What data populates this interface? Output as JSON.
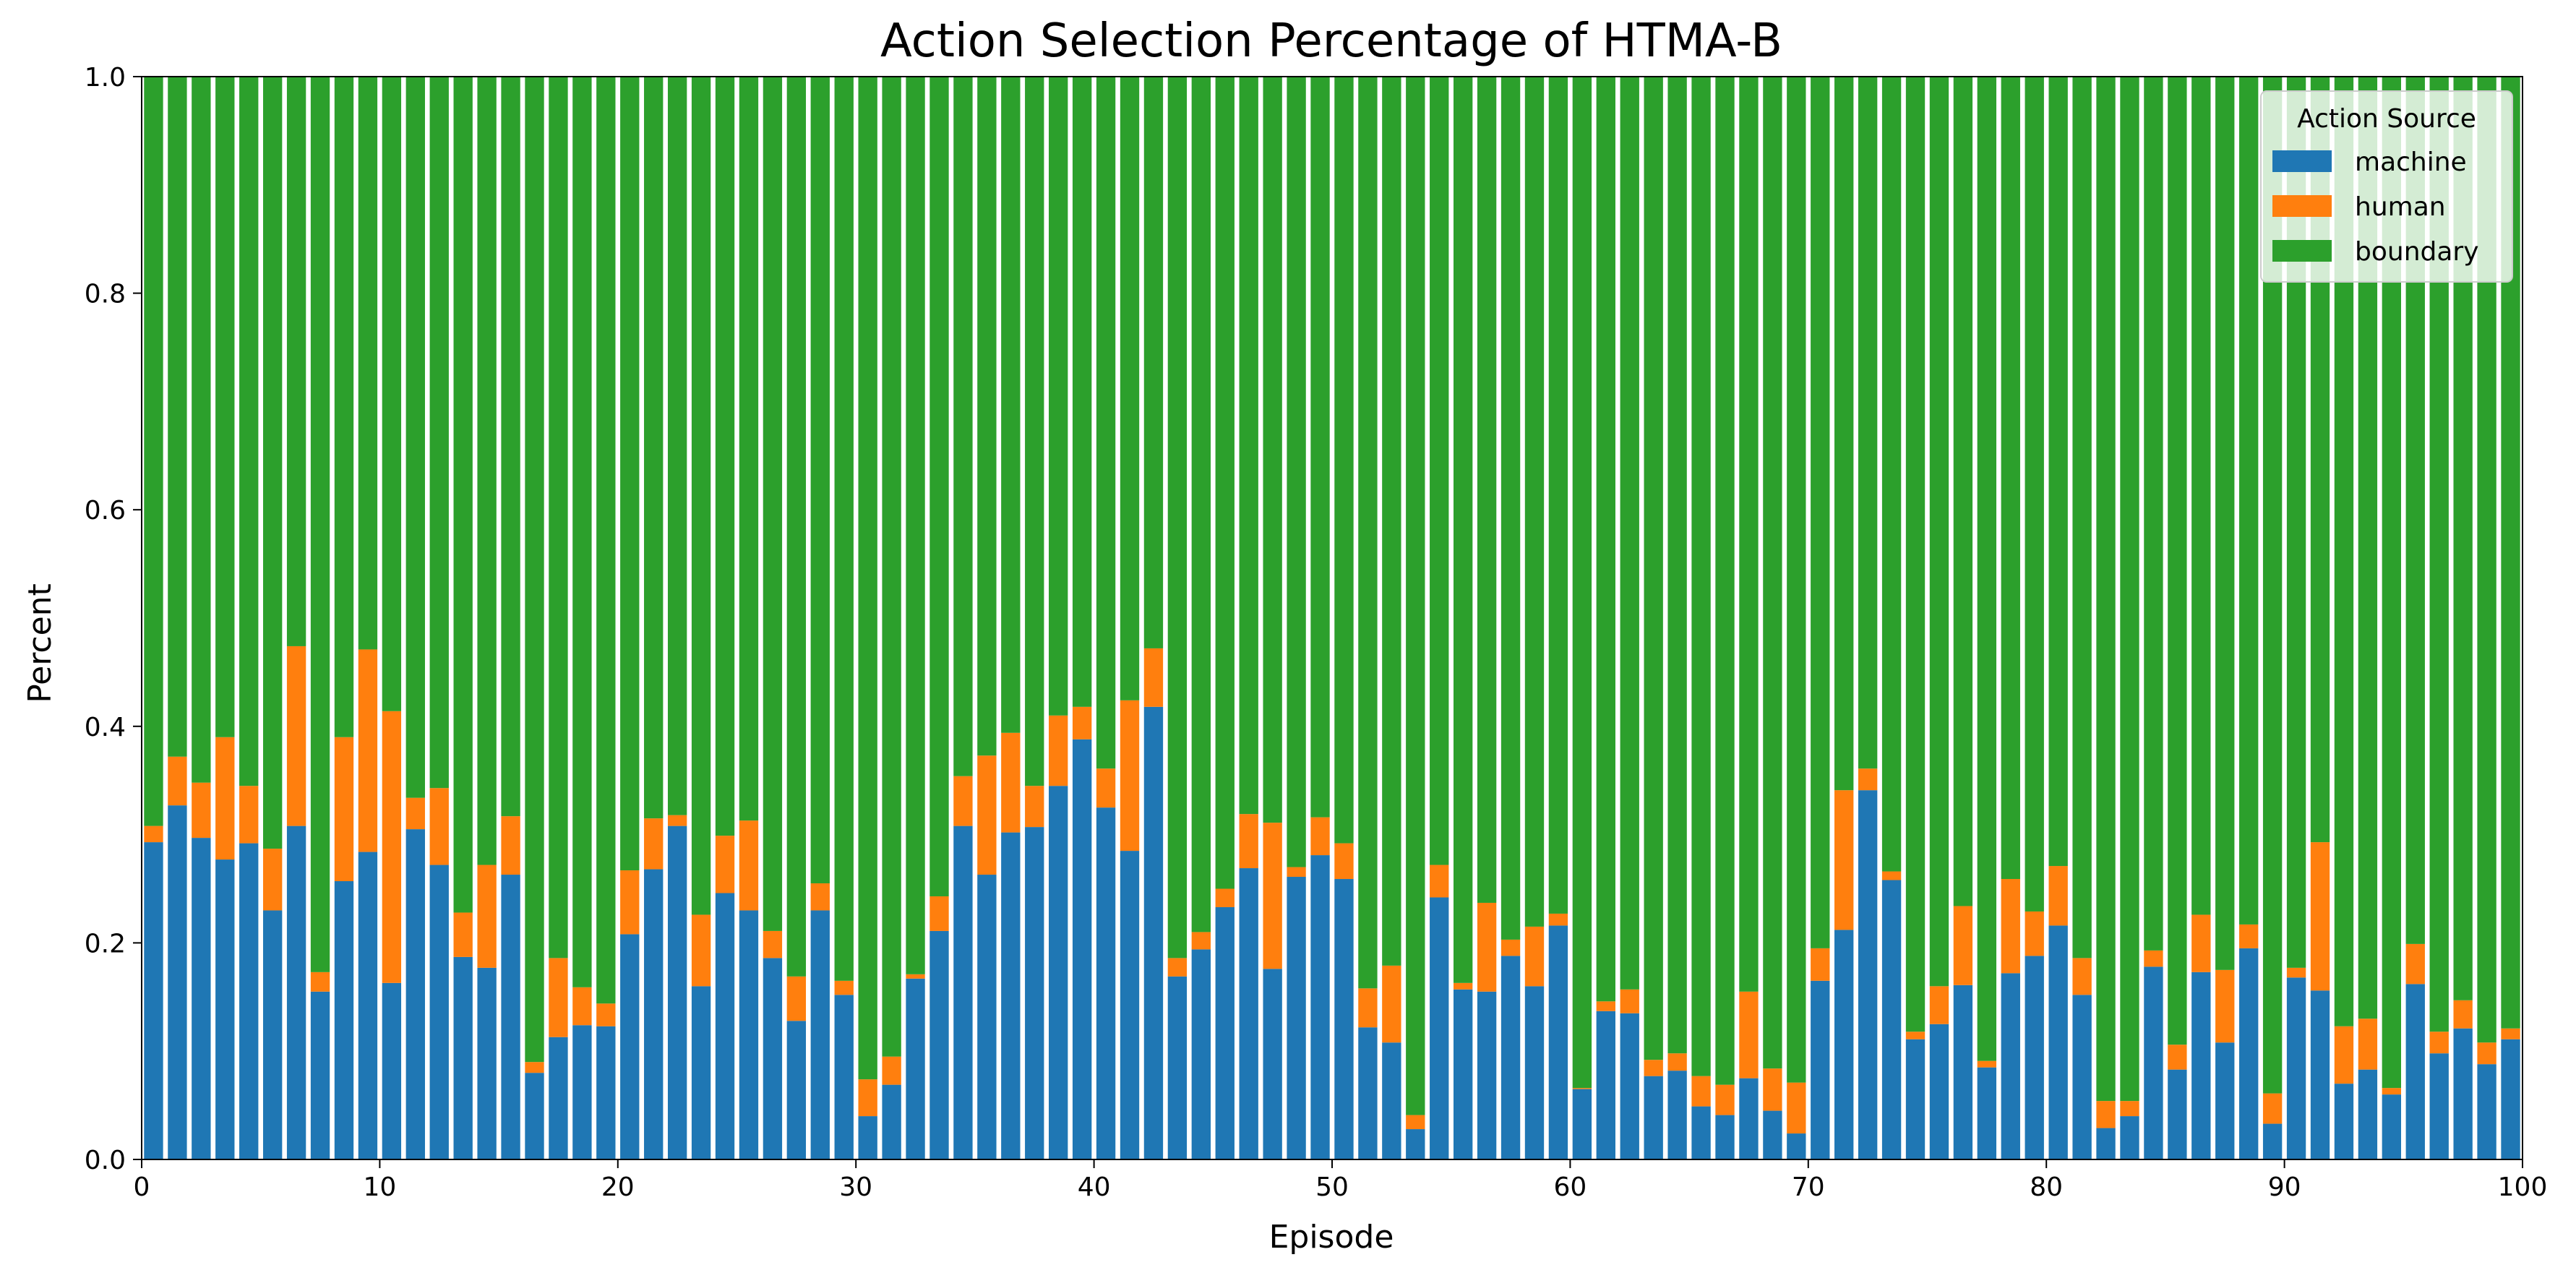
{
  "chart_data": {
    "type": "bar",
    "stacked": true,
    "title": "Action Selection Percentage of HTMA-B",
    "xlabel": "Episode",
    "ylabel": "Percent",
    "xlim": [
      0,
      100
    ],
    "ylim": [
      0,
      1.0
    ],
    "xticks": [
      "0",
      "10",
      "20",
      "30",
      "40",
      "50",
      "60",
      "70",
      "80",
      "90",
      "100"
    ],
    "yticks": [
      "0.0",
      "0.2",
      "0.4",
      "0.6",
      "0.8",
      "1.0"
    ],
    "legend": {
      "title": "Action Source",
      "position": "top-right"
    },
    "colors": {
      "machine": "#1f77b4",
      "human": "#ff7f0e",
      "boundary": "#2ca02c"
    },
    "episodes": [
      0,
      1,
      2,
      3,
      4,
      5,
      6,
      7,
      8,
      9,
      10,
      11,
      12,
      13,
      14,
      15,
      16,
      17,
      18,
      19,
      20,
      21,
      22,
      23,
      24,
      25,
      26,
      27,
      28,
      29,
      30,
      31,
      32,
      33,
      34,
      35,
      36,
      37,
      38,
      39,
      40,
      41,
      42,
      43,
      44,
      45,
      46,
      47,
      48,
      49,
      50,
      51,
      52,
      53,
      54,
      55,
      56,
      57,
      58,
      59,
      60,
      61,
      62,
      63,
      64,
      65,
      66,
      67,
      68,
      69,
      70,
      71,
      72,
      73,
      74,
      75,
      76,
      77,
      78,
      79,
      80,
      81,
      82,
      83,
      84,
      85,
      86,
      87,
      88,
      89,
      90,
      91,
      92,
      93,
      94,
      95,
      96,
      97,
      98,
      99
    ],
    "series": [
      {
        "name": "machine",
        "values": [
          0.293,
          0.327,
          0.297,
          0.277,
          0.292,
          0.23,
          0.308,
          0.155,
          0.257,
          0.284,
          0.163,
          0.305,
          0.272,
          0.187,
          0.177,
          0.263,
          0.08,
          0.113,
          0.124,
          0.123,
          0.208,
          0.268,
          0.308,
          0.16,
          0.246,
          0.23,
          0.186,
          0.128,
          0.23,
          0.152,
          0.04,
          0.069,
          0.167,
          0.211,
          0.308,
          0.263,
          0.302,
          0.307,
          0.345,
          0.388,
          0.325,
          0.285,
          0.418,
          0.169,
          0.194,
          0.233,
          0.269,
          0.176,
          0.261,
          0.281,
          0.259,
          0.122,
          0.108,
          0.028,
          0.242,
          0.157,
          0.155,
          0.188,
          0.16,
          0.216,
          0.065,
          0.137,
          0.135,
          0.077,
          0.082,
          0.049,
          0.041,
          0.075,
          0.045,
          0.024,
          0.165,
          0.212,
          0.341,
          0.258,
          0.111,
          0.125,
          0.161,
          0.085,
          0.172,
          0.188,
          0.216,
          0.152,
          0.029,
          0.04,
          0.178,
          0.083,
          0.173,
          0.108,
          0.195,
          0.033,
          0.168,
          0.156,
          0.07,
          0.083,
          0.06,
          0.162,
          0.098,
          0.121,
          0.088,
          0.111
        ]
      },
      {
        "name": "human",
        "values": [
          0.015,
          0.045,
          0.051,
          0.113,
          0.053,
          0.057,
          0.166,
          0.018,
          0.133,
          0.187,
          0.251,
          0.029,
          0.071,
          0.041,
          0.095,
          0.054,
          0.01,
          0.073,
          0.035,
          0.021,
          0.059,
          0.047,
          0.01,
          0.066,
          0.053,
          0.083,
          0.025,
          0.041,
          0.025,
          0.013,
          0.034,
          0.026,
          0.004,
          0.032,
          0.046,
          0.11,
          0.092,
          0.038,
          0.065,
          0.03,
          0.036,
          0.139,
          0.054,
          0.017,
          0.016,
          0.017,
          0.05,
          0.135,
          0.009,
          0.035,
          0.033,
          0.036,
          0.071,
          0.013,
          0.03,
          0.006,
          0.082,
          0.015,
          0.055,
          0.011,
          0.001,
          0.009,
          0.022,
          0.015,
          0.016,
          0.028,
          0.028,
          0.08,
          0.039,
          0.047,
          0.03,
          0.129,
          0.02,
          0.008,
          0.007,
          0.035,
          0.073,
          0.006,
          0.087,
          0.041,
          0.055,
          0.034,
          0.025,
          0.014,
          0.015,
          0.023,
          0.053,
          0.067,
          0.022,
          0.028,
          0.009,
          0.137,
          0.053,
          0.047,
          0.006,
          0.037,
          0.02,
          0.026,
          0.02,
          0.01
        ]
      },
      {
        "name": "boundary",
        "values": [
          0.692,
          0.628,
          0.652,
          0.61,
          0.655,
          0.713,
          0.526,
          0.827,
          0.61,
          0.529,
          0.586,
          0.666,
          0.657,
          0.772,
          0.728,
          0.683,
          0.91,
          0.814,
          0.841,
          0.856,
          0.733,
          0.685,
          0.682,
          0.774,
          0.701,
          0.687,
          0.789,
          0.831,
          0.745,
          0.835,
          0.926,
          0.905,
          0.829,
          0.757,
          0.646,
          0.627,
          0.606,
          0.655,
          0.59,
          0.582,
          0.639,
          0.576,
          0.528,
          0.814,
          0.79,
          0.75,
          0.681,
          0.689,
          0.73,
          0.684,
          0.708,
          0.842,
          0.821,
          0.959,
          0.728,
          0.837,
          0.763,
          0.797,
          0.785,
          0.773,
          0.934,
          0.854,
          0.843,
          0.908,
          0.902,
          0.923,
          0.931,
          0.845,
          0.916,
          0.929,
          0.805,
          0.659,
          0.639,
          0.734,
          0.882,
          0.84,
          0.766,
          0.909,
          0.741,
          0.771,
          0.729,
          0.814,
          0.946,
          0.946,
          0.807,
          0.894,
          0.774,
          0.825,
          0.783,
          0.939,
          0.823,
          0.707,
          0.877,
          0.87,
          0.934,
          0.801,
          0.882,
          0.853,
          0.892,
          0.879
        ]
      }
    ]
  }
}
